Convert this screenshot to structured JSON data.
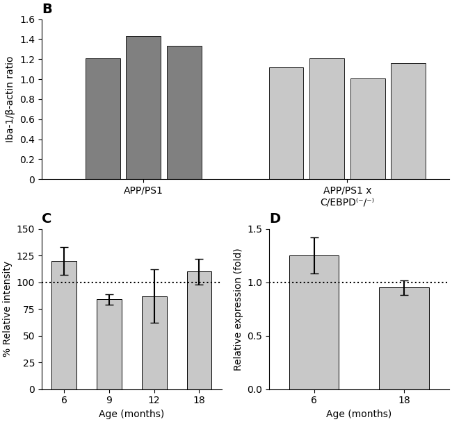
{
  "chart_data": [
    {
      "type": "bar",
      "title": "B",
      "categories": [
        "APP/PS1",
        "APP/PS1 x\nC/EBPD⁽⁻/⁻⁾"
      ],
      "values": [
        [
          1.21,
          1.43,
          1.33
        ],
        [
          1.12,
          1.21,
          1.01,
          1.16
        ]
      ],
      "colors": [
        "#808080",
        "#c8c8c8"
      ],
      "ylabel": "Iba-1/β-actin ratio",
      "ylim": [
        0,
        1.6
      ],
      "yticks": [
        0,
        0.2,
        0.4,
        0.6,
        0.8,
        {
          "value": 1,
          "label": "1.0"
        },
        1.2,
        1.4,
        1.6
      ]
    },
    {
      "type": "bar",
      "title": "C",
      "categories": [
        "6",
        "9",
        "12",
        "18"
      ],
      "values": [
        120,
        84,
        87,
        110
      ],
      "errors": [
        13,
        5,
        25,
        12
      ],
      "color": "#c8c8c8",
      "reference_line": 100,
      "ylabel": "% Relative intensity",
      "xlabel": "Age (months)",
      "ylim": [
        0,
        150
      ],
      "yticks": [
        0,
        25,
        50,
        75,
        100,
        125,
        150
      ]
    },
    {
      "type": "bar",
      "title": "D",
      "categories": [
        "6",
        "18"
      ],
      "values": [
        1.25,
        0.95
      ],
      "errors": [
        0.17,
        0.07
      ],
      "color": "#c8c8c8",
      "reference_line": 1.0,
      "ylabel": "Relative expression (fold)",
      "xlabel": "Age (months)",
      "ylim": [
        0,
        1.5
      ],
      "yticks": [
        {
          "value": 0,
          "label": "0.0"
        },
        0.5,
        {
          "value": 1,
          "label": "1.0"
        },
        1.5
      ]
    }
  ]
}
